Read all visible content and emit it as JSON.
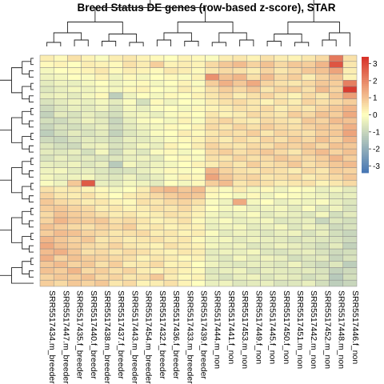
{
  "chart_data": {
    "type": "heatmap",
    "title": "Breed Status DE genes (row-based z-score), STAR",
    "xlabel": "",
    "ylabel": "",
    "columns": [
      "SRR5517434.m_breeder",
      "SRR5517447.m_breeder",
      "SRR5517435.f_breeder",
      "SRR5517440.f_breeder",
      "SRR5517438.m_breeder",
      "SRR5517437.f_breeder",
      "SRR5517443.m_breeder",
      "SRR5517454.m_breeder",
      "SRR5517432.f_breeder",
      "SRR5517436.f_breeder",
      "SRR5517433.m_breeder",
      "SRR5517439.f_breeder",
      "SRR5517444.m_non",
      "SRR5517441.f_non",
      "SRR5517453.m_non",
      "SRR5517449.f_non",
      "SRR5517445.f_non",
      "SRR5517450.f_non",
      "SRR5517451.m_non",
      "SRR5517442.m_non",
      "SRR5517452.m_non",
      "SRR5517448.m_non",
      "SRR5517446.f_non"
    ],
    "row_count": 37,
    "values": [
      [
        0.3,
        0.1,
        0.5,
        0.2,
        -0.1,
        0.3,
        0.4,
        0.2,
        0.1,
        0.0,
        0.2,
        0.1,
        -0.1,
        0.3,
        0.4,
        0.2,
        0.5,
        0.3,
        0.2,
        0.4,
        0.6,
        2.2,
        0.5
      ],
      [
        0.1,
        0.2,
        0.0,
        0.3,
        0.2,
        0.1,
        0.5,
        0.3,
        0.8,
        0.2,
        0.3,
        0.2,
        0.6,
        0.9,
        1.1,
        0.7,
        1.0,
        0.6,
        0.9,
        0.8,
        1.2,
        2.8,
        0.4
      ],
      [
        -0.2,
        0.0,
        0.1,
        0.2,
        0.4,
        0.1,
        0.3,
        0.2,
        0.1,
        0.4,
        0.3,
        0.1,
        0.4,
        0.6,
        0.5,
        0.3,
        0.7,
        0.4,
        0.6,
        0.9,
        1.0,
        1.5,
        0.3
      ],
      [
        -0.3,
        -0.2,
        0.0,
        -0.1,
        0.2,
        -0.3,
        0.1,
        -0.2,
        0.0,
        0.1,
        -0.1,
        0.2,
        1.8,
        1.0,
        1.2,
        0.5,
        1.1,
        0.6,
        0.8,
        0.3,
        0.7,
        1.0,
        0.2
      ],
      [
        -0.5,
        -0.3,
        -0.4,
        -0.2,
        0.0,
        -0.3,
        -0.1,
        0.1,
        -0.2,
        0.0,
        0.2,
        -0.1,
        0.8,
        1.3,
        0.9,
        1.4,
        0.7,
        0.5,
        0.4,
        0.6,
        0.9,
        0.8,
        2.1
      ],
      [
        -0.6,
        -0.4,
        -0.2,
        -0.3,
        -0.1,
        -0.2,
        0.1,
        0.2,
        0.0,
        -0.1,
        0.3,
        0.1,
        0.5,
        0.8,
        0.6,
        0.9,
        0.4,
        0.7,
        0.8,
        0.5,
        1.1,
        0.7,
        3.2
      ],
      [
        -0.4,
        -0.3,
        -0.5,
        -0.2,
        0.1,
        -1.2,
        -0.3,
        0.0,
        -0.2,
        0.1,
        0.0,
        0.2,
        0.4,
        0.6,
        0.3,
        0.5,
        0.7,
        0.4,
        0.2,
        0.6,
        0.4,
        0.9,
        1.6
      ],
      [
        -0.7,
        -0.5,
        -0.3,
        -0.4,
        -0.2,
        -0.5,
        -0.1,
        -0.8,
        0.1,
        -0.3,
        0.0,
        -0.1,
        0.3,
        0.5,
        0.6,
        0.4,
        0.2,
        0.5,
        0.3,
        0.7,
        0.5,
        0.6,
        0.8
      ],
      [
        -0.9,
        -0.6,
        -0.4,
        -0.5,
        -0.3,
        -0.7,
        -0.2,
        -0.4,
        -0.1,
        0.0,
        -0.2,
        0.1,
        0.2,
        0.3,
        0.5,
        0.4,
        0.6,
        0.3,
        0.5,
        0.4,
        0.7,
        0.9,
        1.2
      ],
      [
        -1.1,
        -0.5,
        -0.7,
        -0.4,
        -0.6,
        -0.8,
        -0.3,
        -0.2,
        -0.4,
        -0.1,
        0.1,
        0.0,
        0.4,
        0.2,
        0.3,
        0.6,
        0.5,
        0.4,
        0.8,
        0.6,
        1.0,
        0.8,
        1.4
      ],
      [
        -0.8,
        -0.9,
        -0.6,
        -0.3,
        -0.5,
        -1.0,
        -0.4,
        -0.1,
        0.0,
        -0.2,
        0.2,
        -0.1,
        0.5,
        0.7,
        0.4,
        0.3,
        0.6,
        0.5,
        0.4,
        0.9,
        0.7,
        1.1,
        1.0
      ],
      [
        -1.0,
        -0.7,
        -0.8,
        -0.6,
        -0.4,
        -0.9,
        -0.5,
        -0.3,
        -0.2,
        0.1,
        0.0,
        0.2,
        0.6,
        0.4,
        0.7,
        0.5,
        0.8,
        0.6,
        0.5,
        0.7,
        0.9,
        0.8,
        1.3
      ],
      [
        -1.2,
        -0.8,
        -0.5,
        -0.7,
        -0.5,
        -1.1,
        -0.6,
        -0.4,
        -0.1,
        0.0,
        0.3,
        0.1,
        0.4,
        0.6,
        0.5,
        0.8,
        0.4,
        0.7,
        0.6,
        0.5,
        0.8,
        0.9,
        1.5
      ],
      [
        -0.9,
        -1.0,
        -0.7,
        -0.5,
        -0.6,
        -0.8,
        -0.4,
        -0.5,
        -0.3,
        -0.1,
        0.1,
        0.2,
        0.5,
        0.3,
        0.6,
        0.4,
        0.7,
        0.5,
        0.8,
        0.6,
        1.0,
        0.7,
        1.2
      ],
      [
        -0.6,
        -0.8,
        -0.9,
        -0.4,
        -0.3,
        -0.7,
        -0.5,
        -0.2,
        -0.4,
        0.2,
        0.0,
        0.3,
        0.7,
        0.5,
        0.4,
        0.6,
        0.5,
        0.8,
        0.7,
        0.9,
        0.6,
        1.0,
        0.9
      ],
      [
        -0.5,
        -0.6,
        -0.4,
        -0.8,
        -0.2,
        -0.9,
        -0.3,
        -0.6,
        -0.1,
        0.1,
        -0.2,
        0.0,
        0.6,
        0.8,
        0.5,
        0.7,
        0.9,
        0.6,
        0.4,
        0.8,
        1.1,
        0.7,
        1.0
      ],
      [
        -0.7,
        -0.4,
        -0.6,
        -0.5,
        -0.7,
        -0.6,
        -0.4,
        -0.3,
        -0.5,
        0.0,
        0.1,
        -0.1,
        0.5,
        0.4,
        0.7,
        0.5,
        0.6,
        0.9,
        0.7,
        0.6,
        0.8,
        1.2,
        0.8
      ],
      [
        -0.4,
        -0.5,
        -0.3,
        -0.6,
        -0.4,
        -1.3,
        -0.2,
        -0.5,
        -0.3,
        -0.2,
        0.0,
        0.2,
        0.3,
        0.6,
        0.4,
        0.8,
        0.5,
        0.6,
        0.9,
        0.5,
        0.7,
        0.9,
        1.1
      ],
      [
        -0.3,
        -0.2,
        -0.5,
        -0.4,
        -0.6,
        -0.8,
        -0.7,
        -0.4,
        -0.2,
        0.1,
        -0.1,
        0.0,
        1.2,
        0.7,
        0.5,
        0.4,
        0.6,
        0.5,
        0.3,
        0.6,
        0.4,
        0.8,
        0.7
      ],
      [
        -0.2,
        -0.4,
        -0.3,
        -0.2,
        -0.5,
        -0.6,
        -0.3,
        -0.6,
        -0.4,
        -0.1,
        0.2,
        0.1,
        1.5,
        0.9,
        0.6,
        0.7,
        0.4,
        0.5,
        0.6,
        0.3,
        0.5,
        0.6,
        0.9
      ],
      [
        -0.1,
        -0.3,
        0.9,
        2.7,
        -0.4,
        -0.5,
        -0.2,
        -0.3,
        -0.5,
        0.0,
        -0.2,
        0.1,
        0.8,
        1.1,
        0.4,
        0.6,
        0.5,
        0.3,
        0.4,
        0.5,
        0.2,
        0.4,
        0.6
      ],
      [
        0.5,
        0.3,
        0.4,
        0.2,
        0.1,
        -0.2,
        0.0,
        0.3,
        1.0,
        1.2,
        0.9,
        1.1,
        0.2,
        -0.1,
        0.3,
        -0.2,
        0.1,
        -0.3,
        0.0,
        -0.1,
        -0.4,
        -0.2,
        -0.5
      ],
      [
        0.7,
        0.4,
        0.3,
        0.5,
        0.2,
        0.0,
        0.3,
        0.4,
        0.6,
        0.8,
        1.0,
        0.9,
        0.1,
        0.0,
        -0.2,
        0.1,
        -0.3,
        0.0,
        -0.1,
        -0.2,
        -0.3,
        -0.5,
        -0.4
      ],
      [
        0.9,
        0.6,
        0.5,
        0.3,
        0.4,
        0.2,
        0.1,
        0.5,
        0.4,
        0.6,
        0.7,
        0.5,
        -0.1,
        -0.3,
        1.4,
        -0.2,
        0.0,
        -0.4,
        -0.2,
        -0.3,
        -0.1,
        -0.4,
        -0.6
      ],
      [
        0.8,
        0.9,
        0.7,
        0.6,
        0.3,
        0.4,
        0.2,
        0.3,
        0.5,
        0.4,
        0.6,
        0.3,
        0.0,
        -0.2,
        -0.1,
        -0.4,
        -0.3,
        -0.2,
        -0.5,
        -0.1,
        -0.6,
        -0.3,
        -0.7
      ],
      [
        0.6,
        1.0,
        0.8,
        0.7,
        0.5,
        0.3,
        0.4,
        0.2,
        0.3,
        0.5,
        0.4,
        0.2,
        -0.2,
        -0.4,
        -0.3,
        -0.1,
        -0.5,
        -0.3,
        -0.4,
        -0.6,
        -0.2,
        -0.8,
        -0.5
      ],
      [
        0.7,
        1.2,
        0.9,
        0.8,
        0.9,
        0.5,
        0.6,
        0.4,
        0.2,
        0.3,
        0.5,
        0.1,
        -0.3,
        -0.1,
        -0.4,
        -0.3,
        -0.2,
        -0.6,
        -0.5,
        -0.4,
        -1.0,
        -0.6,
        -0.8
      ],
      [
        1.0,
        0.8,
        0.6,
        0.5,
        0.7,
        0.6,
        0.8,
        0.3,
        0.4,
        0.2,
        0.3,
        0.2,
        -0.4,
        -0.3,
        -0.2,
        -0.5,
        -0.4,
        -0.2,
        -0.6,
        -0.3,
        -0.5,
        -0.9,
        -0.7
      ],
      [
        0.8,
        1.1,
        1.0,
        0.7,
        0.6,
        0.4,
        0.5,
        0.6,
        0.3,
        0.4,
        0.2,
        0.3,
        -0.1,
        -0.5,
        -0.3,
        -0.4,
        -0.6,
        -0.4,
        -0.3,
        -0.7,
        -0.4,
        -0.8,
        -1.0
      ],
      [
        1.2,
        0.9,
        0.7,
        0.9,
        0.4,
        0.5,
        0.3,
        0.4,
        0.5,
        0.3,
        0.4,
        0.1,
        -0.3,
        -0.2,
        -0.5,
        -0.3,
        -0.4,
        -0.5,
        -0.7,
        -0.5,
        -0.6,
        -0.7,
        -0.9
      ],
      [
        1.4,
        1.0,
        0.8,
        0.6,
        0.5,
        0.7,
        0.4,
        0.3,
        0.2,
        0.5,
        0.3,
        0.2,
        -0.2,
        -0.4,
        -0.3,
        -0.6,
        -0.5,
        -0.3,
        -0.4,
        -0.6,
        -0.8,
        -0.5,
        -1.1
      ],
      [
        1.1,
        1.3,
        0.9,
        0.5,
        0.6,
        0.4,
        0.6,
        0.5,
        0.3,
        0.2,
        0.4,
        0.3,
        -0.5,
        -0.3,
        -0.4,
        -0.2,
        -0.6,
        -0.7,
        -0.5,
        -0.4,
        -0.7,
        -0.9,
        -0.8
      ],
      [
        1.3,
        0.7,
        1.0,
        0.8,
        0.7,
        0.6,
        0.5,
        0.2,
        0.4,
        0.3,
        0.1,
        0.2,
        -0.4,
        -0.6,
        -0.2,
        -0.5,
        -0.3,
        -0.4,
        -0.8,
        -0.6,
        -0.5,
        -1.0,
        -0.7
      ],
      [
        0.9,
        1.1,
        0.7,
        0.9,
        0.5,
        0.8,
        0.3,
        0.4,
        0.6,
        0.2,
        0.3,
        0.0,
        -0.3,
        -0.5,
        -0.6,
        -0.4,
        -0.5,
        -0.6,
        -0.3,
        -0.7,
        -0.9,
        -0.6,
        -1.2
      ],
      [
        1.0,
        0.8,
        1.2,
        0.6,
        0.8,
        0.5,
        0.7,
        0.3,
        0.2,
        0.4,
        0.2,
        0.1,
        -0.6,
        -0.4,
        -0.3,
        -0.7,
        -0.4,
        -0.5,
        -0.6,
        -0.5,
        -0.7,
        -1.1,
        -0.9
      ],
      [
        0.7,
        0.9,
        0.8,
        1.0,
        0.6,
        0.7,
        0.4,
        0.5,
        0.9,
        0.3,
        0.1,
        0.2,
        -0.5,
        -0.7,
        -0.4,
        -0.3,
        -0.6,
        -0.4,
        -0.5,
        -0.8,
        -0.6,
        -1.3,
        -0.8
      ],
      [
        0.8,
        0.6,
        0.9,
        0.7,
        0.9,
        0.4,
        0.6,
        0.2,
        0.3,
        0.5,
        0.2,
        0.0,
        -0.4,
        -0.3,
        -0.6,
        -0.5,
        -0.4,
        -0.7,
        -0.6,
        -0.4,
        -0.8,
        -1.2,
        -1.0
      ]
    ],
    "color_scale": {
      "min": -3.4,
      "max": 3.4,
      "low": "#4575B4",
      "mid": "#FFFFBF",
      "high": "#D73027",
      "legend_ticks": [
        3,
        2,
        1,
        0,
        -1,
        -2,
        -3
      ],
      "legend_placement": "right"
    },
    "dendrograms": [
      "top",
      "left"
    ]
  }
}
